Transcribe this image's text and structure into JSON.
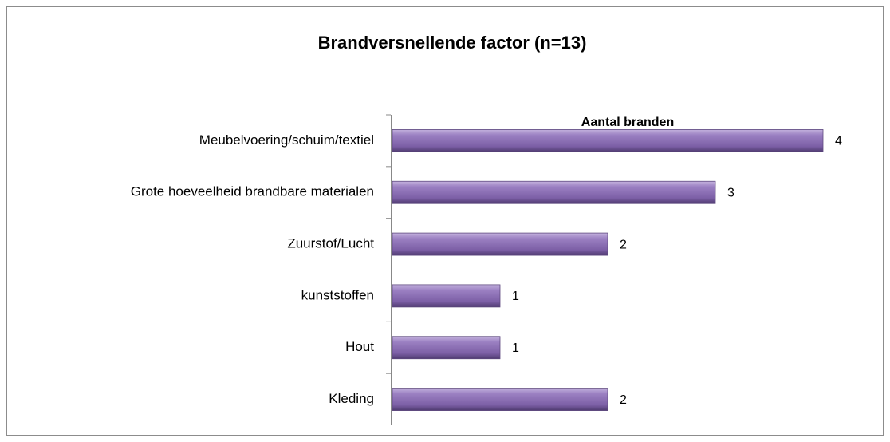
{
  "chart_data": {
    "type": "bar",
    "orientation": "horizontal",
    "title": "Brandversnellende factor (n=13)",
    "categories": [
      "Meubelvoering/schuim/textiel",
      "Grote hoeveelheid brandbare materialen",
      "Zuurstof/Lucht",
      "kunststoffen",
      "Hout",
      "Kleding"
    ],
    "series": [
      {
        "name": "Aantal branden",
        "color": "#8064a2",
        "values": [
          4,
          3,
          2,
          1,
          1,
          2
        ]
      }
    ],
    "xlim": [
      0,
      4
    ]
  }
}
